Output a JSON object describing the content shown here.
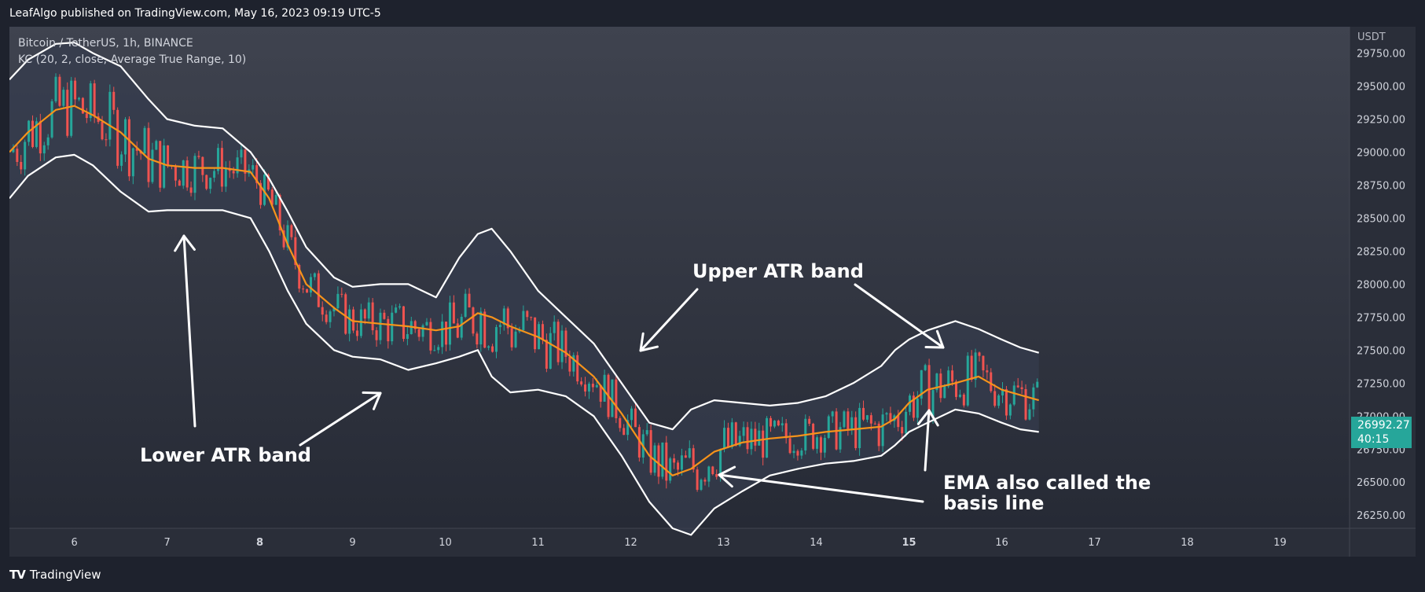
{
  "header": {
    "published": "LeafAlgo published on TradingView.com, May 16, 2023 09:19 UTC-5"
  },
  "legend": {
    "symbol": "Bitcoin / TetherUS, 1h, BINANCE",
    "indicator": "KC (20, 2, close, Average True Range, 10)"
  },
  "footer": {
    "brand": "TradingView",
    "logo": "TV"
  },
  "price": {
    "last": "26992.27",
    "countdown": "40:15"
  },
  "colors": {
    "up": "#26a69a",
    "down": "#ef5350",
    "ema": "#f7931a",
    "band": "#ffffff",
    "fill": "#363c4e",
    "price_label": "#26a69a"
  },
  "annotations": {
    "upper": "Upper ATR band",
    "lower": "Lower ATR band",
    "ema_line1": "EMA also called the",
    "ema_line2": "basis line"
  },
  "chart_data": {
    "type": "line",
    "title": "",
    "currency": "USDT",
    "x_ticks": [
      "6",
      "7",
      "8",
      "9",
      "10",
      "11",
      "12",
      "13",
      "14",
      "15",
      "16",
      "17",
      "18",
      "19"
    ],
    "x_ticks_bold": [
      "8",
      "15"
    ],
    "x_range": [
      5.3,
      19.75
    ],
    "y_range": [
      26150,
      29950
    ],
    "y_ticks": [
      "29750.00",
      "29500.00",
      "29250.00",
      "29000.00",
      "28750.00",
      "28500.00",
      "28250.00",
      "28000.00",
      "27750.00",
      "27500.00",
      "27250.00",
      "27000.00",
      "26750.00",
      "26500.00",
      "26250.00"
    ],
    "series": [
      {
        "name": "Upper band",
        "x": [
          5.3,
          5.5,
          5.8,
          6.0,
          6.2,
          6.5,
          6.8,
          7.0,
          7.3,
          7.6,
          7.9,
          8.1,
          8.3,
          8.5,
          8.8,
          9.0,
          9.3,
          9.6,
          9.9,
          10.15,
          10.35,
          10.5,
          10.7,
          11.0,
          11.3,
          11.6,
          11.9,
          12.2,
          12.45,
          12.65,
          12.9,
          13.2,
          13.5,
          13.8,
          14.1,
          14.4,
          14.7,
          14.85,
          15.0,
          15.2,
          15.5,
          15.75,
          16.0,
          16.2,
          16.4
        ],
        "y": [
          29550,
          29700,
          29820,
          29830,
          29750,
          29650,
          29400,
          29250,
          29200,
          29180,
          29000,
          28800,
          28550,
          28280,
          28050,
          27980,
          28000,
          28000,
          27900,
          28200,
          28380,
          28420,
          28250,
          27950,
          27750,
          27550,
          27250,
          26950,
          26900,
          27050,
          27120,
          27100,
          27080,
          27100,
          27150,
          27250,
          27380,
          27500,
          27580,
          27650,
          27720,
          27660,
          27580,
          27520,
          27480
        ]
      },
      {
        "name": "EMA basis",
        "x": [
          5.3,
          5.5,
          5.8,
          6.0,
          6.2,
          6.5,
          6.8,
          7.0,
          7.3,
          7.6,
          7.9,
          8.1,
          8.3,
          8.5,
          8.8,
          9.0,
          9.3,
          9.6,
          9.9,
          10.15,
          10.35,
          10.5,
          10.7,
          11.0,
          11.3,
          11.6,
          11.9,
          12.2,
          12.45,
          12.65,
          12.9,
          13.2,
          13.5,
          13.8,
          14.1,
          14.4,
          14.7,
          14.85,
          15.0,
          15.2,
          15.5,
          15.75,
          16.0,
          16.2,
          16.4
        ],
        "y": [
          29000,
          29150,
          29320,
          29350,
          29280,
          29150,
          28950,
          28900,
          28880,
          28880,
          28850,
          28650,
          28300,
          28000,
          27820,
          27720,
          27700,
          27680,
          27650,
          27680,
          27780,
          27750,
          27680,
          27600,
          27480,
          27300,
          27020,
          26700,
          26550,
          26600,
          26730,
          26800,
          26830,
          26850,
          26880,
          26900,
          26920,
          26980,
          27100,
          27200,
          27250,
          27300,
          27200,
          27160,
          27120
        ]
      },
      {
        "name": "Lower band",
        "x": [
          5.3,
          5.5,
          5.8,
          6.0,
          6.2,
          6.5,
          6.8,
          7.0,
          7.3,
          7.6,
          7.9,
          8.1,
          8.3,
          8.5,
          8.8,
          9.0,
          9.3,
          9.6,
          9.9,
          10.15,
          10.35,
          10.5,
          10.7,
          11.0,
          11.3,
          11.6,
          11.9,
          12.2,
          12.45,
          12.65,
          12.9,
          13.2,
          13.5,
          13.8,
          14.1,
          14.4,
          14.7,
          14.85,
          15.0,
          15.2,
          15.5,
          15.75,
          16.0,
          16.2,
          16.4
        ],
        "y": [
          28650,
          28820,
          28960,
          28980,
          28900,
          28700,
          28550,
          28560,
          28560,
          28560,
          28500,
          28250,
          27950,
          27700,
          27500,
          27450,
          27430,
          27350,
          27400,
          27450,
          27500,
          27300,
          27180,
          27200,
          27150,
          27000,
          26700,
          26350,
          26150,
          26100,
          26300,
          26430,
          26550,
          26600,
          26640,
          26660,
          26700,
          26780,
          26880,
          26950,
          27050,
          27020,
          26950,
          26900,
          26880
        ]
      }
    ]
  }
}
